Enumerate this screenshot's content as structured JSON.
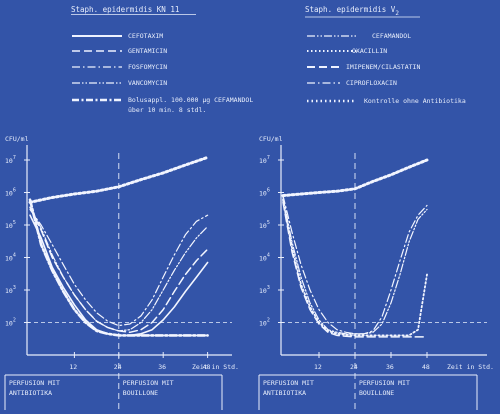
{
  "chart_data": [
    {
      "type": "line",
      "title": "Staph. epidermidis KN 11",
      "ylabel": "CFU/ml",
      "xlabel": "Zeit in Std.",
      "x_ticks": [
        12,
        24,
        36,
        48
      ],
      "y_ticks": [
        {
          "base": "10",
          "exp": "2",
          "value": 100
        },
        {
          "base": "10",
          "exp": "3",
          "value": 1000
        },
        {
          "base": "10",
          "exp": "4",
          "value": 10000
        },
        {
          "base": "10",
          "exp": "5",
          "value": 100000
        },
        {
          "base": "10",
          "exp": "6",
          "value": 1000000
        },
        {
          "base": "10",
          "exp": "7",
          "value": 10000000
        }
      ],
      "y_scale": "log",
      "xlim": [
        0,
        48
      ],
      "ylim": [
        10,
        10000000
      ],
      "phases": [
        "PERFUSION MIT ANTIBIOTIKA",
        "PERFUSION MIT BOUILLONE"
      ],
      "series": [
        {
          "name": "CEFOTAXIM",
          "style": "solid",
          "x": [
            0,
            3,
            6,
            9,
            12,
            15,
            18,
            21,
            24,
            27,
            30,
            33,
            36,
            39,
            42,
            45,
            48
          ],
          "y": [
            200000,
            40000,
            5000,
            1200,
            350,
            120,
            60,
            45,
            40,
            40,
            45,
            60,
            120,
            300,
            900,
            2500,
            7000
          ]
        },
        {
          "name": "GENTAMICIN",
          "style": "longdash",
          "x": [
            0,
            3,
            6,
            9,
            12,
            15,
            18,
            21,
            24,
            27,
            30,
            33,
            36,
            39,
            42,
            45,
            48
          ],
          "y": [
            350000,
            70000,
            10000,
            2500,
            700,
            250,
            110,
            70,
            55,
            50,
            60,
            100,
            250,
            900,
            3000,
            8000,
            18000
          ]
        },
        {
          "name": "FOSFOMYCIN",
          "style": "dashdot",
          "x": [
            0,
            3,
            6,
            9,
            12,
            15,
            18,
            21,
            24,
            27,
            30,
            33,
            36,
            39,
            42,
            45,
            48
          ],
          "y": [
            300000,
            100000,
            25000,
            6000,
            1500,
            500,
            200,
            110,
            80,
            90,
            160,
            500,
            2500,
            12000,
            50000,
            130000,
            200000
          ]
        },
        {
          "name": "VANCOMYCIN",
          "style": "dashdotdot",
          "x": [
            0,
            3,
            6,
            9,
            12,
            15,
            18,
            21,
            24,
            27,
            30,
            33,
            36,
            39,
            42,
            45,
            48
          ],
          "y": [
            350000,
            80000,
            12000,
            2500,
            700,
            250,
            110,
            70,
            55,
            60,
            100,
            250,
            1000,
            4000,
            14000,
            40000,
            90000
          ]
        },
        {
          "name": "Bolusappl. 100.000 µg CEFAMANDOL über 10 min. 8 stdl.",
          "style": "bold-dashdot",
          "x": [
            0,
            3,
            6,
            9,
            12,
            15,
            18,
            21,
            24,
            27,
            30,
            33,
            36,
            39,
            42,
            45,
            48
          ],
          "y": [
            600000,
            25000,
            4000,
            900,
            250,
            100,
            55,
            45,
            40,
            40,
            40,
            40,
            40,
            40,
            40,
            40,
            40
          ]
        },
        {
          "name": "Kontrolle ohne Antibiotika",
          "style": "bold-dots",
          "x": [
            0,
            6,
            12,
            18,
            24,
            30,
            36,
            42,
            48
          ],
          "y": [
            500000,
            700000,
            900000,
            1100000,
            1500000,
            2500000,
            4000000,
            7000000,
            12000000
          ]
        }
      ]
    },
    {
      "type": "line",
      "title": "Staph. epidermidis V",
      "title_subscript": "2",
      "ylabel": "CFU/ml",
      "xlabel": "Zeit in Std.",
      "x_ticks": [
        12,
        24,
        36,
        48
      ],
      "y_ticks": [
        {
          "base": "10",
          "exp": "2",
          "value": 100
        },
        {
          "base": "10",
          "exp": "3",
          "value": 1000
        },
        {
          "base": "10",
          "exp": "4",
          "value": 10000
        },
        {
          "base": "10",
          "exp": "5",
          "value": 100000
        },
        {
          "base": "10",
          "exp": "6",
          "value": 1000000
        },
        {
          "base": "10",
          "exp": "7",
          "value": 10000000
        }
      ],
      "y_scale": "log",
      "xlim": [
        0,
        48
      ],
      "ylim": [
        10,
        10000000
      ],
      "phases": [
        "PERFUSION MIT ANTIBIOTIKA",
        "PERFUSION MIT BOUILLONE"
      ],
      "series": [
        {
          "name": "CEFAMANDOL",
          "style": "dashdotdot",
          "x": [
            0,
            3,
            6,
            9,
            12,
            15,
            18,
            21,
            24,
            27,
            30,
            33,
            36,
            39,
            42,
            45,
            48
          ],
          "y": [
            700000,
            30000,
            2500,
            400,
            120,
            60,
            50,
            45,
            45,
            45,
            50,
            90,
            400,
            3000,
            30000,
            150000,
            300000
          ]
        },
        {
          "name": "OXACILLIN",
          "style": "dotted",
          "x": [
            0,
            3,
            6,
            9,
            12,
            15,
            18,
            21,
            24,
            27,
            30,
            33,
            36,
            39,
            42,
            45,
            48
          ],
          "y": [
            600000,
            20000,
            1500,
            300,
            100,
            55,
            45,
            42,
            40,
            40,
            40,
            40,
            40,
            40,
            40,
            60,
            3000
          ]
        },
        {
          "name": "IMIPENEM/CILASTATIN",
          "style": "longdash",
          "x": [
            0,
            3,
            6,
            9,
            12,
            15,
            18,
            21,
            24,
            27,
            30,
            33,
            36,
            39,
            42,
            45,
            48
          ],
          "y": [
            500000,
            15000,
            1200,
            250,
            90,
            50,
            40,
            38,
            36,
            36,
            36,
            36,
            36,
            36,
            36,
            36,
            36
          ]
        },
        {
          "name": "CIPROFLOXACIN",
          "style": "dashdot",
          "x": [
            0,
            3,
            6,
            9,
            12,
            15,
            18,
            21,
            24,
            27,
            30,
            33,
            36,
            39,
            42,
            45,
            48
          ],
          "y": [
            800000,
            60000,
            6000,
            1000,
            250,
            100,
            60,
            50,
            45,
            45,
            55,
            150,
            1000,
            8000,
            60000,
            200000,
            400000
          ]
        },
        {
          "name": "Kontrolle ohne Antibiotika",
          "style": "bold-dots",
          "x": [
            0,
            6,
            12,
            18,
            24,
            30,
            36,
            42,
            48
          ],
          "y": [
            800000,
            900000,
            1000000,
            1100000,
            1300000,
            2200000,
            3500000,
            6000000,
            10000000
          ]
        }
      ]
    }
  ]
}
